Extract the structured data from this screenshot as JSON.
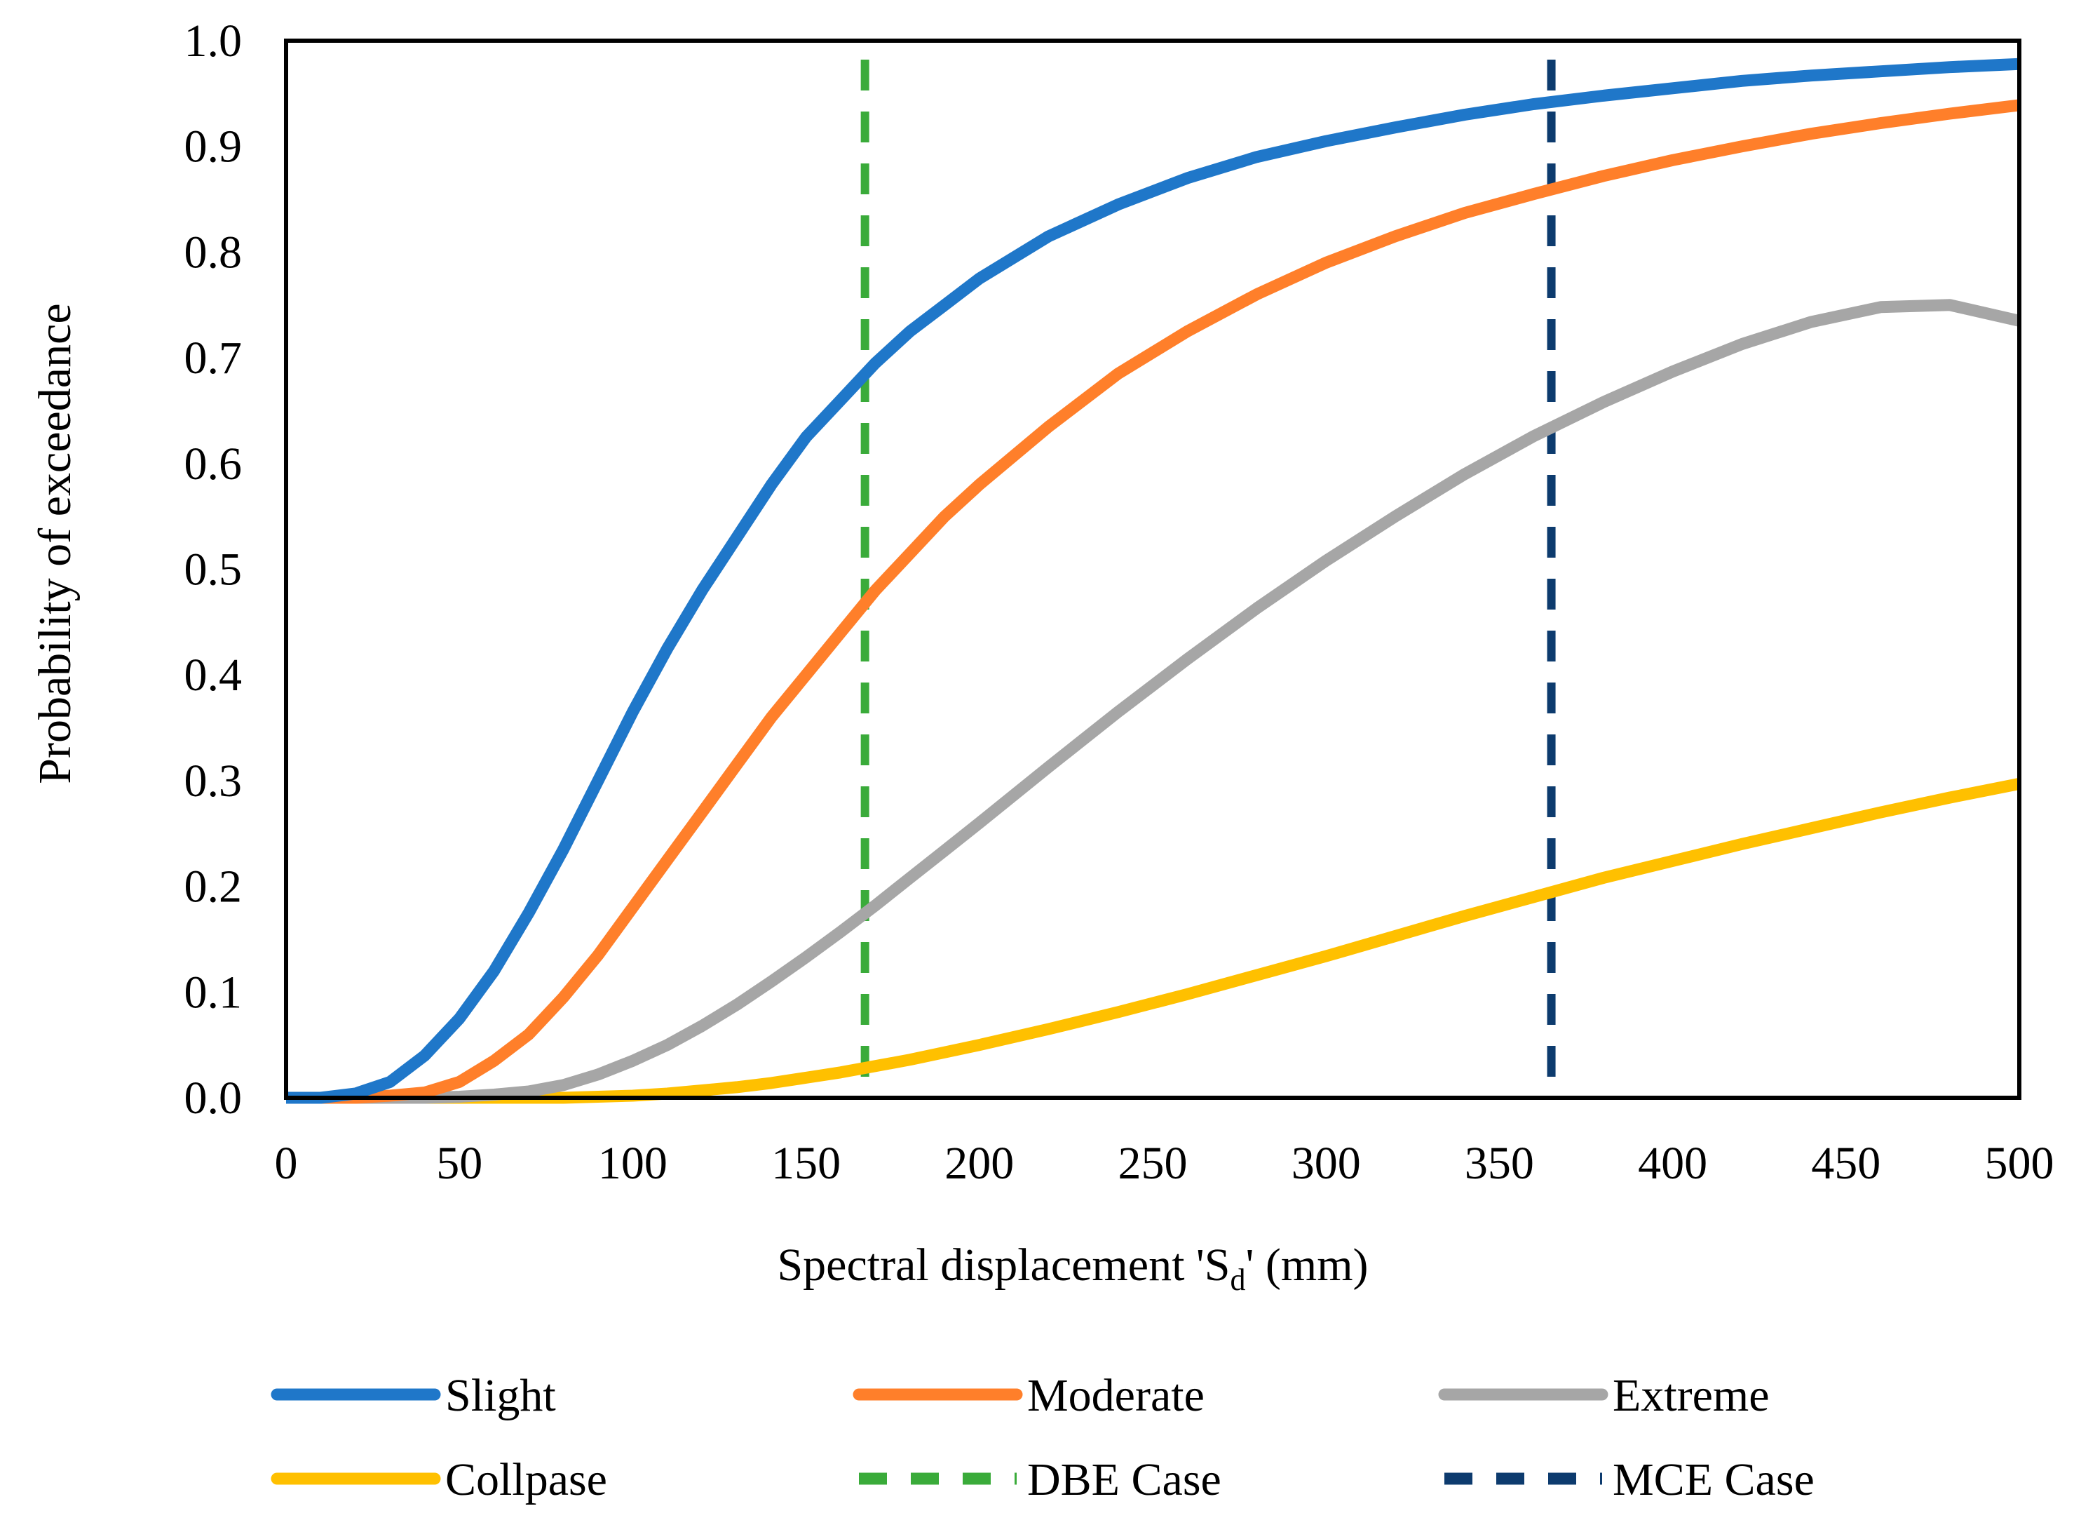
{
  "chart_data": {
    "type": "line",
    "title": "",
    "xlabel_main": "Spectral displacement 'S",
    "xlabel_sub": "d",
    "xlabel_tail": "' (mm)",
    "ylabel": "Probability of exceedance",
    "xlim": [
      0,
      500
    ],
    "ylim": [
      0,
      1.0
    ],
    "xticks": [
      0,
      50,
      100,
      150,
      200,
      250,
      300,
      350,
      400,
      450,
      500
    ],
    "yticks": [
      "0.0",
      "0.1",
      "0.2",
      "0.3",
      "0.4",
      "0.5",
      "0.6",
      "0.7",
      "0.8",
      "0.9",
      "1.0"
    ],
    "grid": false,
    "legend_position": "bottom",
    "x": [
      0,
      10,
      20,
      30,
      40,
      50,
      60,
      70,
      80,
      90,
      100,
      110,
      120,
      130,
      140,
      150,
      160,
      170,
      180,
      190,
      200,
      220,
      240,
      260,
      280,
      300,
      320,
      340,
      360,
      380,
      400,
      420,
      440,
      460,
      480,
      500
    ],
    "series": [
      {
        "name": "Slight",
        "color": "#1f77c9",
        "style": "solid",
        "values": [
          0.0,
          0.0,
          0.004,
          0.015,
          0.04,
          0.075,
          0.12,
          0.175,
          0.235,
          0.3,
          0.365,
          0.425,
          0.48,
          0.53,
          0.58,
          0.625,
          0.66,
          0.695,
          0.725,
          0.75,
          0.775,
          0.815,
          0.845,
          0.87,
          0.89,
          0.905,
          0.918,
          0.93,
          0.94,
          0.948,
          0.955,
          0.962,
          0.967,
          0.971,
          0.975,
          0.978
        ]
      },
      {
        "name": "Moderate",
        "color": "#ff7f2a",
        "style": "solid",
        "values": [
          0.0,
          0.0,
          0.0,
          0.002,
          0.005,
          0.015,
          0.035,
          0.06,
          0.095,
          0.135,
          0.18,
          0.225,
          0.27,
          0.315,
          0.36,
          0.4,
          0.44,
          0.48,
          0.515,
          0.55,
          0.58,
          0.635,
          0.685,
          0.725,
          0.76,
          0.79,
          0.815,
          0.837,
          0.855,
          0.872,
          0.887,
          0.9,
          0.912,
          0.922,
          0.931,
          0.939
        ]
      },
      {
        "name": "Extreme",
        "color": "#a6a6a6",
        "style": "solid",
        "values": [
          0.0,
          0.0,
          0.0,
          0.0,
          0.0,
          0.001,
          0.003,
          0.006,
          0.012,
          0.022,
          0.035,
          0.05,
          0.068,
          0.088,
          0.11,
          0.133,
          0.157,
          0.182,
          0.208,
          0.234,
          0.26,
          0.313,
          0.365,
          0.415,
          0.463,
          0.508,
          0.55,
          0.59,
          0.626,
          0.658,
          0.687,
          0.713,
          0.734,
          0.748,
          0.75,
          0.735
        ]
      },
      {
        "name": "Collpase",
        "color": "#ffc000",
        "style": "solid",
        "values": [
          0.0,
          0.0,
          0.0,
          0.0,
          0.0,
          0.0,
          0.0,
          0.0,
          0.0,
          0.001,
          0.002,
          0.004,
          0.007,
          0.01,
          0.014,
          0.019,
          0.024,
          0.03,
          0.036,
          0.043,
          0.05,
          0.065,
          0.081,
          0.098,
          0.116,
          0.134,
          0.153,
          0.172,
          0.19,
          0.208,
          0.224,
          0.24,
          0.255,
          0.27,
          0.284,
          0.297
        ]
      }
    ],
    "vlines": [
      {
        "name": "DBE Case",
        "x": 167,
        "color": "#3aab3a",
        "style": "dashed"
      },
      {
        "name": "MCE Case",
        "x": 365,
        "color": "#0d3b6e",
        "style": "dashed"
      }
    ],
    "legend": [
      "Slight",
      "Moderate",
      "Extreme",
      "Collpase",
      "DBE Case",
      "MCE Case"
    ]
  }
}
